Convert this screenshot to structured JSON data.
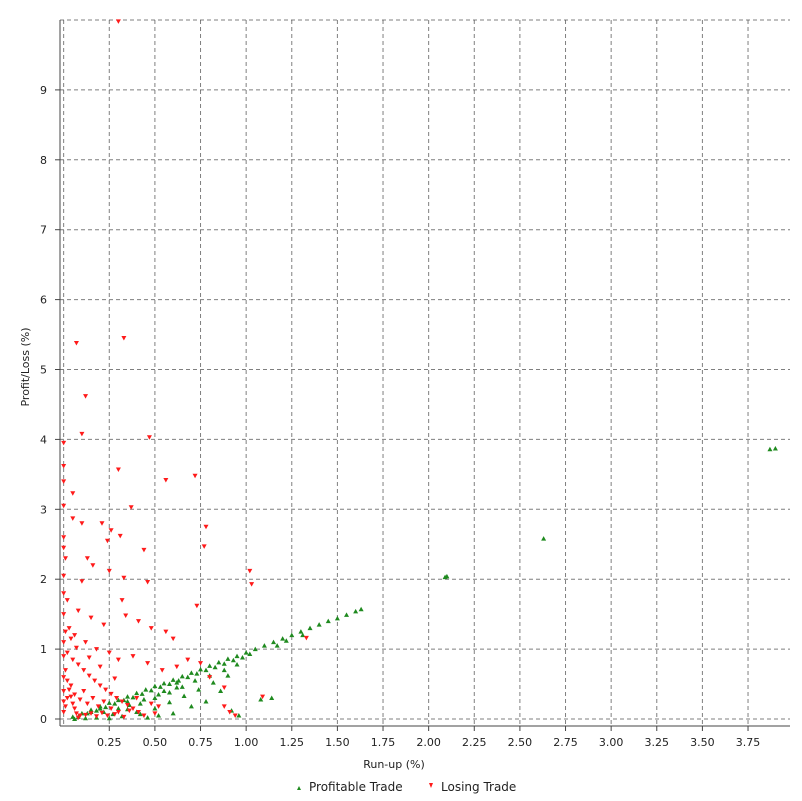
{
  "chart_data": {
    "type": "scatter",
    "xlabel": "Run-up (%)",
    "ylabel": "Profit/Loss (%)",
    "xlim": [
      -0.02,
      3.98
    ],
    "ylim": [
      -0.1,
      10.0
    ],
    "x_ticks": [
      "0.25",
      "0.50",
      "0.75",
      "1.00",
      "1.25",
      "1.50",
      "1.75",
      "2.00",
      "2.25",
      "2.50",
      "2.75",
      "3.00",
      "3.25",
      "3.50",
      "3.75"
    ],
    "y_ticks": [
      "0",
      "1",
      "2",
      "3",
      "4",
      "5",
      "6",
      "7",
      "8",
      "9"
    ],
    "grid": true,
    "legend_position": "bottom",
    "colors": {
      "profitable": "#1f8a1f",
      "losing": "#ff1a1a"
    },
    "series": [
      {
        "name": "Profitable Trade",
        "marker": "triangle-up",
        "points": [
          [
            3.87,
            3.86
          ],
          [
            3.9,
            3.87
          ],
          [
            2.63,
            2.58
          ],
          [
            2.1,
            2.04
          ],
          [
            2.09,
            2.03
          ],
          [
            1.63,
            1.57
          ],
          [
            1.6,
            1.54
          ],
          [
            1.55,
            1.49
          ],
          [
            1.5,
            1.44
          ],
          [
            1.45,
            1.4
          ],
          [
            1.4,
            1.35
          ],
          [
            1.35,
            1.3
          ],
          [
            1.3,
            1.25
          ],
          [
            1.25,
            1.2
          ],
          [
            1.2,
            1.15
          ],
          [
            1.15,
            1.1
          ],
          [
            1.1,
            1.05
          ],
          [
            1.05,
            1.0
          ],
          [
            1.0,
            0.95
          ],
          [
            0.95,
            0.9
          ],
          [
            0.9,
            0.86
          ],
          [
            0.85,
            0.81
          ],
          [
            0.8,
            0.76
          ],
          [
            0.75,
            0.71
          ],
          [
            0.7,
            0.66
          ],
          [
            0.65,
            0.61
          ],
          [
            0.6,
            0.56
          ],
          [
            0.55,
            0.51
          ],
          [
            0.5,
            0.47
          ],
          [
            0.45,
            0.42
          ],
          [
            0.4,
            0.37
          ],
          [
            0.35,
            0.32
          ],
          [
            0.3,
            0.27
          ],
          [
            0.25,
            0.23
          ],
          [
            0.2,
            0.18
          ],
          [
            0.15,
            0.13
          ],
          [
            0.1,
            0.08
          ],
          [
            0.05,
            0.03
          ],
          [
            1.02,
            0.93
          ],
          [
            0.98,
            0.88
          ],
          [
            0.93,
            0.84
          ],
          [
            0.88,
            0.79
          ],
          [
            0.83,
            0.74
          ],
          [
            0.78,
            0.7
          ],
          [
            0.73,
            0.65
          ],
          [
            0.68,
            0.6
          ],
          [
            0.63,
            0.55
          ],
          [
            0.58,
            0.5
          ],
          [
            0.53,
            0.46
          ],
          [
            0.48,
            0.41
          ],
          [
            0.43,
            0.36
          ],
          [
            0.38,
            0.31
          ],
          [
            0.33,
            0.27
          ],
          [
            0.28,
            0.22
          ],
          [
            0.23,
            0.17
          ],
          [
            0.18,
            0.12
          ],
          [
            0.13,
            0.08
          ],
          [
            0.08,
            0.03
          ],
          [
            0.95,
            0.78
          ],
          [
            0.88,
            0.7
          ],
          [
            0.8,
            0.62
          ],
          [
            0.72,
            0.55
          ],
          [
            0.65,
            0.46
          ],
          [
            0.58,
            0.38
          ],
          [
            0.5,
            0.3
          ],
          [
            0.42,
            0.22
          ],
          [
            0.35,
            0.14
          ],
          [
            0.27,
            0.07
          ],
          [
            0.9,
            0.62
          ],
          [
            0.82,
            0.52
          ],
          [
            0.74,
            0.42
          ],
          [
            0.66,
            0.33
          ],
          [
            0.58,
            0.24
          ],
          [
            0.5,
            0.15
          ],
          [
            0.42,
            0.07
          ],
          [
            1.14,
            0.3
          ],
          [
            1.08,
            0.28
          ],
          [
            0.86,
            0.4
          ],
          [
            0.78,
            0.25
          ],
          [
            0.7,
            0.18
          ],
          [
            0.6,
            0.08
          ],
          [
            0.52,
            0.05
          ],
          [
            0.46,
            0.02
          ],
          [
            0.4,
            0.1
          ],
          [
            0.32,
            0.04
          ],
          [
            0.25,
            0.01
          ],
          [
            0.18,
            0.02
          ],
          [
            0.12,
            0.01
          ],
          [
            0.06,
            0.0
          ],
          [
            0.96,
            0.05
          ],
          [
            0.92,
            0.12
          ],
          [
            1.31,
            1.2
          ],
          [
            1.22,
            1.12
          ],
          [
            1.17,
            1.05
          ],
          [
            0.22,
            0.1
          ],
          [
            0.3,
            0.15
          ],
          [
            0.36,
            0.2
          ],
          [
            0.44,
            0.28
          ],
          [
            0.52,
            0.35
          ],
          [
            0.62,
            0.45
          ],
          [
            0.2,
            0.15
          ],
          [
            0.15,
            0.1
          ],
          [
            0.35,
            0.25
          ],
          [
            0.55,
            0.4
          ],
          [
            0.62,
            0.52
          ]
        ]
      },
      {
        "name": "Losing Trade",
        "marker": "triangle-down",
        "points": [
          [
            0.3,
            9.98
          ],
          [
            0.07,
            5.38
          ],
          [
            0.33,
            5.45
          ],
          [
            0.12,
            4.62
          ],
          [
            0.1,
            4.08
          ],
          [
            0.47,
            4.03
          ],
          [
            0.0,
            3.95
          ],
          [
            0.0,
            3.62
          ],
          [
            0.3,
            3.57
          ],
          [
            0.56,
            3.42
          ],
          [
            0.72,
            3.48
          ],
          [
            0.0,
            3.4
          ],
          [
            0.05,
            3.23
          ],
          [
            0.0,
            3.05
          ],
          [
            0.37,
            3.03
          ],
          [
            0.05,
            2.87
          ],
          [
            0.1,
            2.8
          ],
          [
            0.21,
            2.8
          ],
          [
            0.78,
            2.75
          ],
          [
            0.0,
            2.6
          ],
          [
            0.26,
            2.7
          ],
          [
            0.24,
            2.55
          ],
          [
            0.31,
            2.62
          ],
          [
            0.44,
            2.42
          ],
          [
            0.77,
            2.47
          ],
          [
            0.0,
            2.45
          ],
          [
            0.16,
            2.2
          ],
          [
            0.25,
            2.12
          ],
          [
            1.02,
            2.12
          ],
          [
            1.03,
            1.93
          ],
          [
            0.1,
            1.97
          ],
          [
            0.33,
            2.02
          ],
          [
            0.46,
            1.96
          ],
          [
            0.73,
            1.62
          ],
          [
            0.0,
            1.8
          ],
          [
            0.02,
            1.7
          ],
          [
            0.08,
            1.55
          ],
          [
            0.15,
            1.45
          ],
          [
            0.22,
            1.35
          ],
          [
            0.34,
            1.48
          ],
          [
            0.41,
            1.4
          ],
          [
            0.48,
            1.3
          ],
          [
            0.56,
            1.25
          ],
          [
            0.6,
            1.15
          ],
          [
            0.0,
            1.5
          ],
          [
            0.03,
            1.3
          ],
          [
            0.06,
            1.2
          ],
          [
            0.12,
            1.1
          ],
          [
            0.18,
            1.0
          ],
          [
            0.25,
            0.95
          ],
          [
            0.3,
            0.85
          ],
          [
            0.38,
            0.9
          ],
          [
            0.46,
            0.8
          ],
          [
            0.54,
            0.7
          ],
          [
            0.62,
            0.75
          ],
          [
            0.68,
            0.85
          ],
          [
            0.75,
            0.8
          ],
          [
            0.8,
            0.6
          ],
          [
            0.88,
            0.45
          ],
          [
            0.0,
            1.1
          ],
          [
            0.02,
            0.95
          ],
          [
            0.05,
            0.85
          ],
          [
            0.08,
            0.78
          ],
          [
            0.11,
            0.7
          ],
          [
            0.14,
            0.62
          ],
          [
            0.17,
            0.55
          ],
          [
            0.2,
            0.48
          ],
          [
            0.23,
            0.42
          ],
          [
            0.26,
            0.36
          ],
          [
            0.29,
            0.3
          ],
          [
            0.32,
            0.25
          ],
          [
            0.35,
            0.2
          ],
          [
            0.38,
            0.15
          ],
          [
            0.41,
            0.1
          ],
          [
            0.0,
            0.9
          ],
          [
            0.01,
            0.7
          ],
          [
            0.02,
            0.55
          ],
          [
            0.03,
            0.42
          ],
          [
            0.04,
            0.32
          ],
          [
            0.05,
            0.22
          ],
          [
            0.06,
            0.15
          ],
          [
            0.07,
            0.08
          ],
          [
            0.08,
            0.02
          ],
          [
            0.09,
            0.05
          ],
          [
            0.12,
            0.06
          ],
          [
            0.15,
            0.08
          ],
          [
            0.18,
            0.04
          ],
          [
            0.21,
            0.09
          ],
          [
            0.24,
            0.05
          ],
          [
            0.28,
            0.07
          ],
          [
            0.33,
            0.03
          ],
          [
            0.44,
            0.05
          ],
          [
            0.5,
            0.08
          ],
          [
            0.0,
            0.6
          ],
          [
            0.0,
            0.4
          ],
          [
            0.0,
            0.25
          ],
          [
            0.0,
            0.1
          ],
          [
            0.01,
            0.18
          ],
          [
            0.02,
            0.3
          ],
          [
            0.04,
            0.48
          ],
          [
            0.06,
            0.35
          ],
          [
            0.09,
            0.28
          ],
          [
            0.11,
            0.4
          ],
          [
            0.13,
            0.22
          ],
          [
            0.16,
            0.3
          ],
          [
            0.19,
            0.18
          ],
          [
            0.22,
            0.25
          ],
          [
            0.26,
            0.15
          ],
          [
            0.3,
            0.1
          ],
          [
            0.36,
            0.12
          ],
          [
            0.4,
            0.3
          ],
          [
            0.48,
            0.22
          ],
          [
            0.52,
            0.18
          ],
          [
            0.88,
            0.18
          ],
          [
            0.91,
            0.1
          ],
          [
            0.94,
            0.05
          ],
          [
            1.09,
            0.32
          ],
          [
            1.33,
            1.16
          ],
          [
            0.28,
            0.58
          ],
          [
            0.2,
            0.75
          ],
          [
            0.14,
            0.88
          ],
          [
            0.07,
            1.02
          ],
          [
            0.04,
            1.15
          ],
          [
            0.01,
            1.25
          ],
          [
            0.0,
            2.05
          ],
          [
            0.01,
            2.3
          ],
          [
            0.32,
            1.7
          ],
          [
            0.13,
            2.3
          ]
        ]
      }
    ]
  }
}
